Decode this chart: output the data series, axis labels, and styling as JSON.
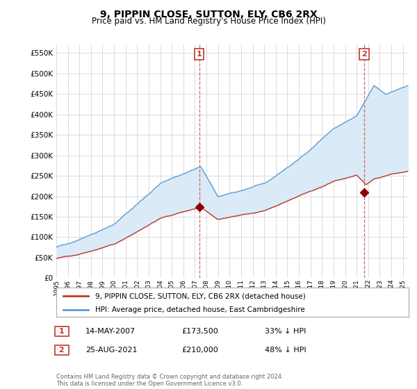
{
  "title": "9, PIPPIN CLOSE, SUTTON, ELY, CB6 2RX",
  "subtitle": "Price paid vs. HM Land Registry's House Price Index (HPI)",
  "title_fontsize": 10,
  "subtitle_fontsize": 8.5,
  "ytick_values": [
    0,
    50000,
    100000,
    150000,
    200000,
    250000,
    300000,
    350000,
    400000,
    450000,
    500000,
    550000
  ],
  "ylim": [
    0,
    570000
  ],
  "xlim_start": 1995.0,
  "xlim_end": 2025.5,
  "hpi_color": "#5b9bd5",
  "fill_color": "#daeaf7",
  "price_color": "#c0392b",
  "marker_color": "#8b0000",
  "vline_color": "#e06060",
  "transaction1_x": 2007.37,
  "transaction1_y": 173500,
  "transaction2_x": 2021.65,
  "transaction2_y": 210000,
  "legend_entry1": "9, PIPPIN CLOSE, SUTTON, ELY, CB6 2RX (detached house)",
  "legend_entry2": "HPI: Average price, detached house, East Cambridgeshire",
  "table_row1_label": "1",
  "table_row1_date": "14-MAY-2007",
  "table_row1_price": "£173,500",
  "table_row1_info": "33% ↓ HPI",
  "table_row2_label": "2",
  "table_row2_date": "25-AUG-2021",
  "table_row2_price": "£210,000",
  "table_row2_info": "48% ↓ HPI",
  "footnote": "Contains HM Land Registry data © Crown copyright and database right 2024.\nThis data is licensed under the Open Government Licence v3.0.",
  "bg_color": "#ffffff",
  "grid_color": "#cccccc"
}
